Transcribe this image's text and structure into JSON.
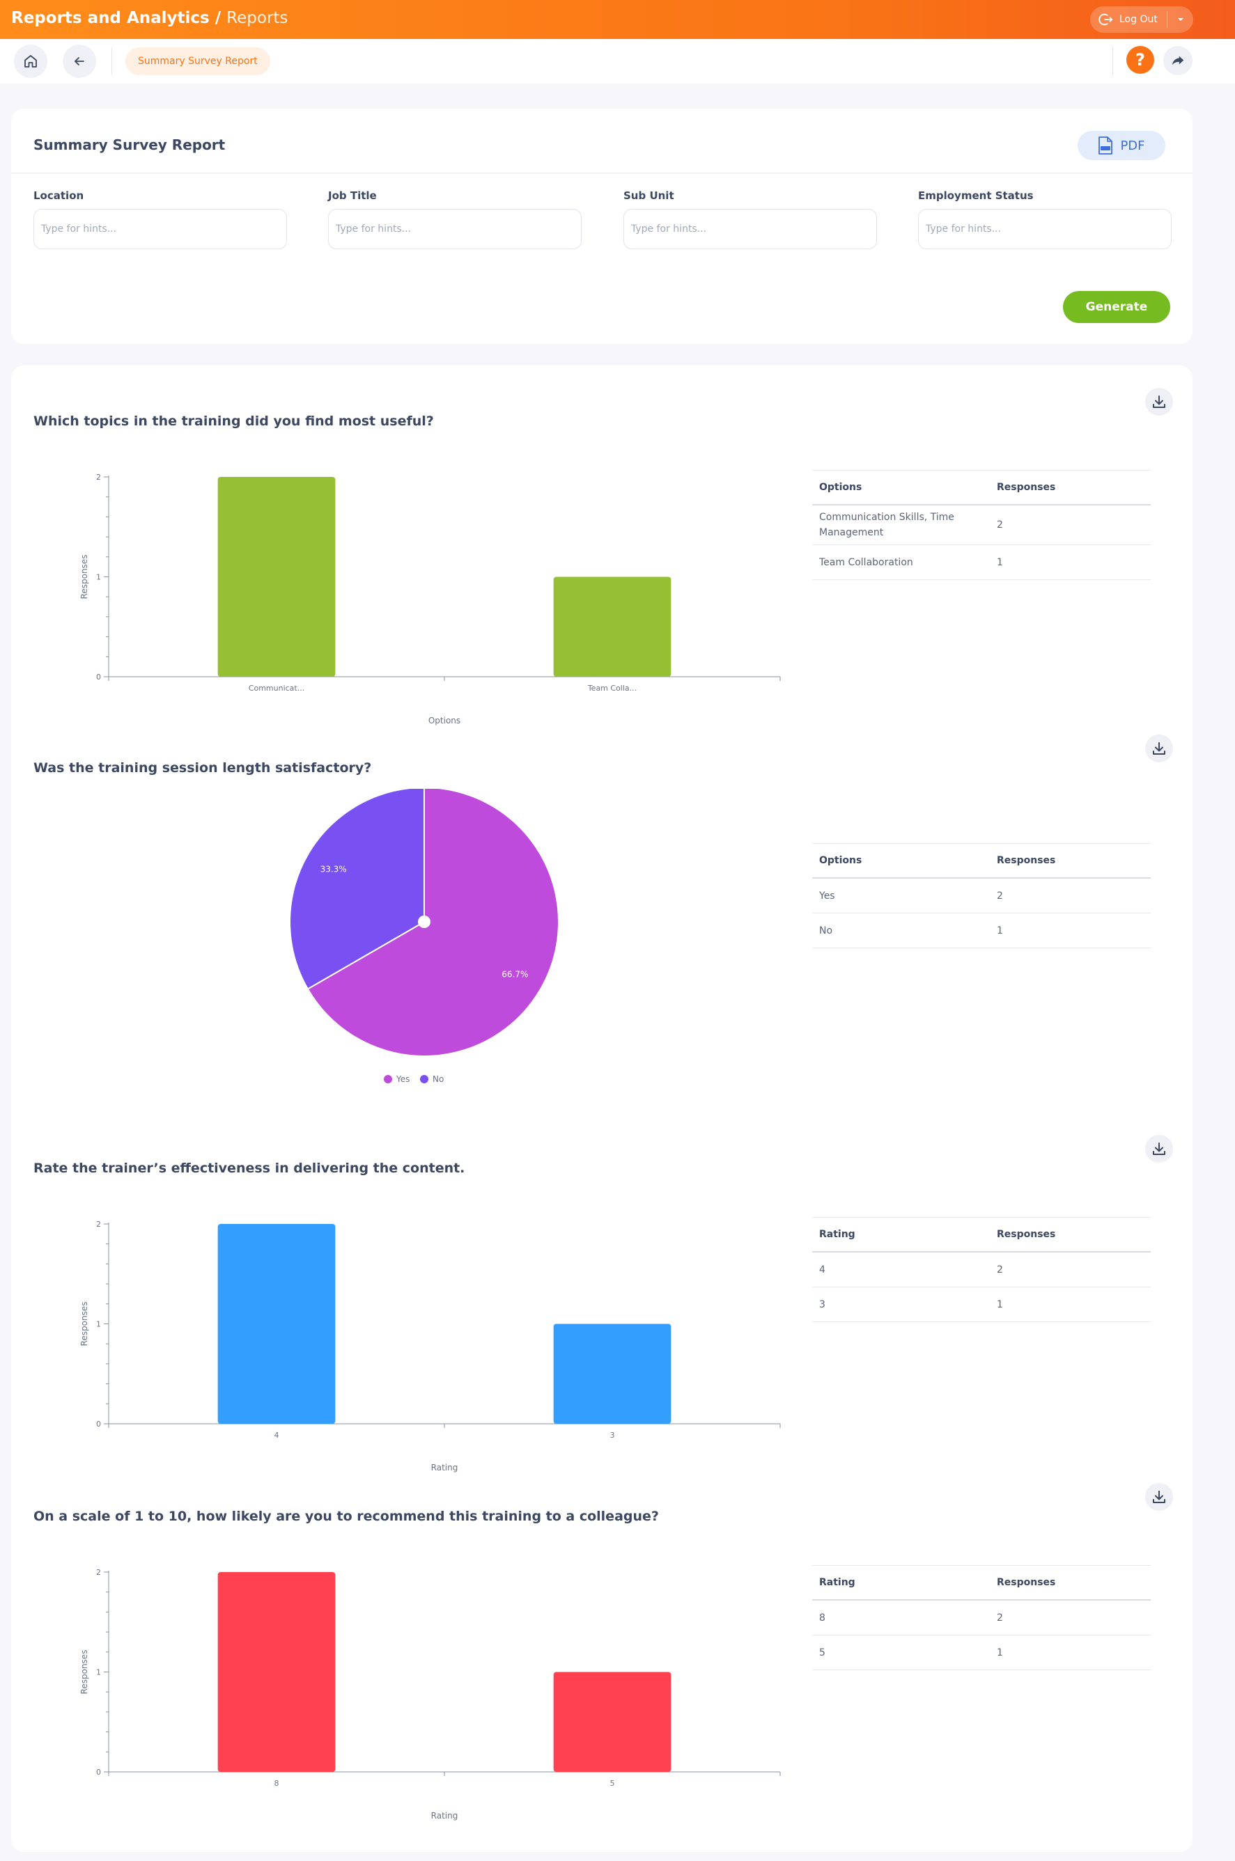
{
  "header": {
    "title": "Reports and Analytics",
    "separator": " / ",
    "subtitle": "Reports",
    "logout_label": "Log Out"
  },
  "nav": {
    "breadcrumb": "Summary Survey Report",
    "help_glyph": "?"
  },
  "filters": {
    "title": "Summary Survey Report",
    "pdf_label": "PDF",
    "generate_label": "Generate",
    "fields": [
      {
        "label": "Location",
        "placeholder": "Type for hints...",
        "value": ""
      },
      {
        "label": "Job Title",
        "placeholder": "Type for hints...",
        "value": ""
      },
      {
        "label": "Sub Unit",
        "placeholder": "Type for hints...",
        "value": ""
      },
      {
        "label": "Employment Status",
        "placeholder": "Type for hints...",
        "value": ""
      }
    ]
  },
  "colors": {
    "accent": "#f97316",
    "generate": "#76bc21",
    "q1_bar": "#97bf33",
    "q3_bar": "#339efe",
    "q4_bar": "#ff4151",
    "pie_yes": "#be4bdb",
    "pie_no": "#7950f2"
  },
  "icons": {
    "home": "home-icon",
    "back": "arrow-left-icon",
    "help": "question-icon",
    "share": "share-icon",
    "download": "download-icon",
    "pdf": "pdf-file-icon",
    "logout": "logout-icon"
  },
  "questions": [
    {
      "title": "Which topics in the training did you find most useful?",
      "table": {
        "col1": "Options",
        "col2": "Responses",
        "rows": [
          {
            "option": "Communication Skills, Time Management",
            "responses": "2"
          },
          {
            "option": "Team Collaboration",
            "responses": "1"
          }
        ]
      }
    },
    {
      "title": "Was the training session length satisfactory?",
      "table": {
        "col1": "Options",
        "col2": "Responses",
        "rows": [
          {
            "option": "Yes",
            "responses": "2"
          },
          {
            "option": "No",
            "responses": "1"
          }
        ]
      }
    },
    {
      "title": "Rate the trainer’s effectiveness in delivering the content.",
      "table": {
        "col1": "Rating",
        "col2": "Responses",
        "rows": [
          {
            "option": "4",
            "responses": "2"
          },
          {
            "option": "3",
            "responses": "1"
          }
        ]
      }
    },
    {
      "title": "On a scale of 1 to 10, how likely are you to recommend this training to a colleague?",
      "table": {
        "col1": "Rating",
        "col2": "Responses",
        "rows": [
          {
            "option": "8",
            "responses": "2"
          },
          {
            "option": "5",
            "responses": "1"
          }
        ]
      }
    }
  ],
  "chart_data": [
    {
      "type": "bar",
      "categories": [
        "Communicat...",
        "Team Colla..."
      ],
      "values": [
        2,
        1
      ],
      "xlabel": "Options",
      "ylabel": "Responses",
      "ylim": [
        0,
        2
      ],
      "yticks": [
        0,
        1,
        2
      ],
      "grid": false,
      "color": "#97bf33"
    },
    {
      "type": "pie",
      "labels": [
        "Yes",
        "No"
      ],
      "values": [
        2,
        1
      ],
      "percent_labels": [
        "66.7%",
        "33.3%"
      ],
      "legend": "bottom",
      "colors": [
        "#be4bdb",
        "#7950f2"
      ]
    },
    {
      "type": "bar",
      "categories": [
        "4",
        "3"
      ],
      "values": [
        2,
        1
      ],
      "xlabel": "Rating",
      "ylabel": "Responses",
      "ylim": [
        0,
        2
      ],
      "yticks": [
        0,
        1,
        2
      ],
      "grid": false,
      "color": "#339efe"
    },
    {
      "type": "bar",
      "categories": [
        "8",
        "5"
      ],
      "values": [
        2,
        1
      ],
      "xlabel": "Rating",
      "ylabel": "Responses",
      "ylim": [
        0,
        2
      ],
      "yticks": [
        0,
        1,
        2
      ],
      "grid": false,
      "color": "#ff4151"
    }
  ]
}
